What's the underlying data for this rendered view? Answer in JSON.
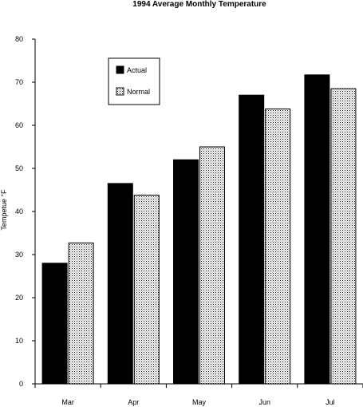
{
  "chart_data": {
    "type": "bar",
    "title": "1994 Average Monthly Temperature",
    "xlabel": "",
    "ylabel": "Tempetue °F",
    "ylim": [
      0,
      80
    ],
    "yticks": [
      0,
      10,
      20,
      30,
      40,
      50,
      60,
      70,
      80
    ],
    "categories": [
      "Mar",
      "Apr",
      "May",
      "Jun",
      "Jul"
    ],
    "series": [
      {
        "name": "Actual",
        "values": [
          28,
          46.5,
          52,
          67,
          71.7
        ],
        "fill": "#000000"
      },
      {
        "name": "Normal",
        "values": [
          32.7,
          43.8,
          55,
          63.8,
          68.5
        ],
        "fill": "dotted"
      }
    ],
    "legend": "upper-left-inside",
    "grid": false
  }
}
